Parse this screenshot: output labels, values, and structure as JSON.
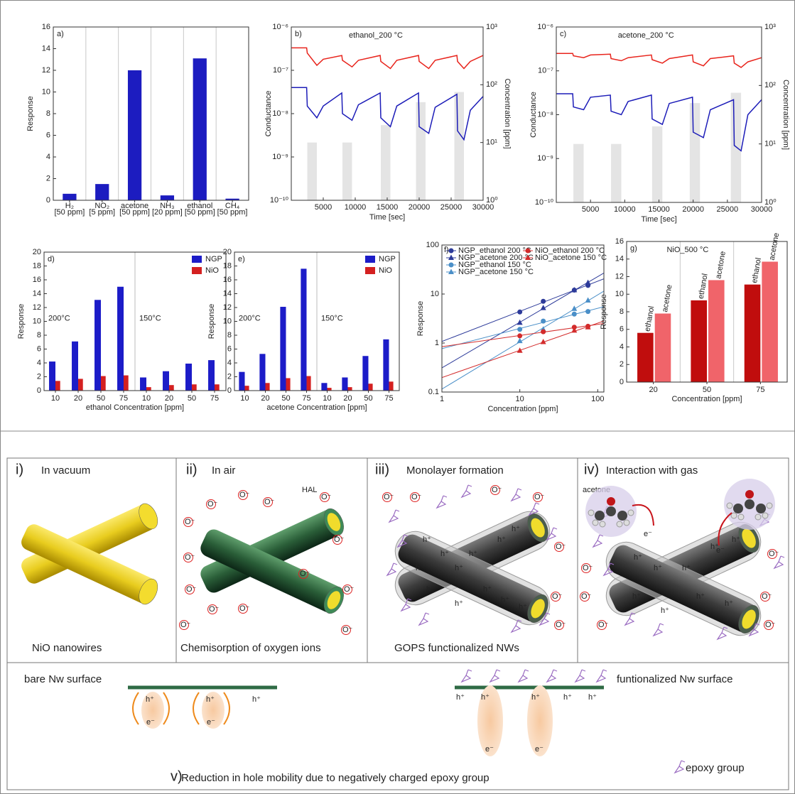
{
  "chart_data": [
    {
      "type": "bar",
      "panel_label": "a)",
      "ylabel": "Response",
      "categories": [
        "H₂",
        "NO₂",
        "acetone",
        "NH₃",
        "ethanol",
        "CH₄"
      ],
      "category_notes": [
        "[50 ppm]",
        "[5 ppm]",
        "[50 ppm]",
        "[20 ppm]",
        "[50 ppm]",
        "[50 ppm]"
      ],
      "values": [
        0.6,
        1.5,
        12.0,
        0.45,
        13.1,
        0.15
      ],
      "color": "#1c1cc0",
      "ylim": [
        0,
        16
      ],
      "yticks": [
        0,
        2,
        4,
        6,
        8,
        10,
        12,
        14,
        16
      ],
      "grid_x": true
    },
    {
      "type": "line",
      "panel_label": "b)",
      "title": "ethanol_200 °C",
      "xlabel": "Time [sec]",
      "ylabel": "Conductance",
      "y2label": "Concentration [ppm]",
      "x": [
        0,
        2400,
        2500,
        4000,
        5000,
        7900,
        8000,
        9500,
        10500,
        13900,
        14000,
        15500,
        16500,
        19900,
        20000,
        21500,
        22500,
        25900,
        26000,
        27000,
        28000,
        30000
      ],
      "series": [
        {
          "color": "#e8241c",
          "values": [
            3.3e-07,
            3.3e-07,
            2.5e-07,
            1.3e-07,
            1.8e-07,
            2.2e-07,
            1.7e-07,
            1.2e-07,
            1.7e-07,
            2.2e-07,
            1.6e-07,
            1.1e-07,
            1.7e-07,
            2.2e-07,
            1.6e-07,
            1.1e-07,
            1.7e-07,
            2.2e-07,
            1.6e-07,
            1.1e-07,
            1.6e-07,
            2.2e-07
          ]
        },
        {
          "color": "#1c1cb8",
          "values": [
            4e-08,
            4e-08,
            1.5e-08,
            8e-09,
            1.5e-08,
            3e-08,
            1e-08,
            7e-09,
            1.6e-08,
            3e-08,
            8e-09,
            5e-09,
            1.5e-08,
            3e-08,
            5e-09,
            3.5e-09,
            1.4e-08,
            2.8e-08,
            4e-09,
            2.5e-09,
            1.2e-08,
            2.5e-08
          ]
        }
      ],
      "bars": {
        "axis": "y2",
        "color": "#e4e4e4",
        "x_start": [
          2500,
          8000,
          14000,
          19500,
          25500
        ],
        "x_end": [
          4000,
          9500,
          15500,
          21000,
          27000
        ],
        "values": [
          10,
          10,
          20,
          50,
          75
        ]
      },
      "xlim": [
        0,
        30000
      ],
      "xticks": [
        5000,
        10000,
        15000,
        20000,
        25000,
        30000
      ],
      "ylog": true,
      "ylim": [
        1e-10,
        1e-06
      ],
      "yticks": [
        {
          "value": 1e-10,
          "label": "10⁻¹⁰"
        },
        {
          "value": 1e-09,
          "label": "10⁻⁹"
        },
        {
          "value": 1e-08,
          "label": "10⁻⁸"
        },
        {
          "value": 1e-07,
          "label": "10⁻⁷"
        },
        {
          "value": 1e-06,
          "label": "10⁻⁶"
        }
      ],
      "y2lim": [
        1,
        1000
      ],
      "y2ticks": [
        {
          "value": 1,
          "label": "10⁰"
        },
        {
          "value": 10,
          "label": "10¹"
        },
        {
          "value": 100,
          "label": "10²"
        },
        {
          "value": 1000,
          "label": "10³"
        }
      ]
    },
    {
      "type": "line",
      "panel_label": "c)",
      "title": "acetone_200 °C",
      "xlabel": "Time [sec]",
      "ylabel": "Conductance",
      "y2label": "Concentration [ppm]",
      "x": [
        0,
        2400,
        2500,
        4000,
        5000,
        7900,
        8000,
        9500,
        10500,
        13900,
        14000,
        15500,
        16500,
        19900,
        20000,
        21500,
        22500,
        25900,
        26000,
        27000,
        28000,
        30000
      ],
      "series": [
        {
          "color": "#e8241c",
          "values": [
            2.5e-07,
            2.5e-07,
            2.2e-07,
            2e-07,
            2.3e-07,
            2.4e-07,
            1.9e-07,
            1.7e-07,
            2e-07,
            2.3e-07,
            1.8e-07,
            1.5e-07,
            1.9e-07,
            2.3e-07,
            1.6e-07,
            1.3e-07,
            1.9e-07,
            2.2e-07,
            1.5e-07,
            1.2e-07,
            1.6e-07,
            2e-07
          ]
        },
        {
          "color": "#1c1cb8",
          "values": [
            3e-08,
            3e-08,
            1.5e-08,
            1.3e-08,
            2.5e-08,
            2.8e-08,
            1.2e-08,
            1e-08,
            2e-08,
            2.8e-08,
            8e-09,
            6e-09,
            1.8e-08,
            2.5e-08,
            4e-09,
            3e-09,
            1.3e-08,
            2.2e-08,
            2e-09,
            1.5e-09,
            1e-08,
            2.2e-08
          ]
        }
      ],
      "bars": {
        "axis": "y2",
        "color": "#e4e4e4",
        "x_start": [
          2500,
          8000,
          14000,
          19500,
          25500
        ],
        "x_end": [
          4000,
          9500,
          15500,
          21000,
          27000
        ],
        "values": [
          10,
          10,
          20,
          50,
          75
        ]
      },
      "xlim": [
        0,
        30000
      ],
      "xticks": [
        5000,
        10000,
        15000,
        20000,
        25000,
        30000
      ],
      "ylog": true,
      "ylim": [
        1e-10,
        1e-06
      ],
      "yticks": [
        {
          "value": 1e-10,
          "label": "10⁻¹⁰"
        },
        {
          "value": 1e-09,
          "label": "10⁻⁹"
        },
        {
          "value": 1e-08,
          "label": "10⁻⁸"
        },
        {
          "value": 1e-07,
          "label": "10⁻⁷"
        },
        {
          "value": 1e-06,
          "label": "10⁻⁶"
        }
      ],
      "y2lim": [
        1,
        1000
      ],
      "y2ticks": [
        {
          "value": 1,
          "label": "10⁰"
        },
        {
          "value": 10,
          "label": "10¹"
        },
        {
          "value": 100,
          "label": "10²"
        },
        {
          "value": 1000,
          "label": "10³"
        }
      ]
    },
    {
      "type": "bar",
      "panel_label": "d)",
      "xlabel": "ethanol Concentration [ppm]",
      "ylabel": "Response",
      "categories": [
        "10",
        "20",
        "50",
        "75",
        "10",
        "20",
        "50",
        "75"
      ],
      "temperatures": [
        "200°C",
        "150°C"
      ],
      "series": [
        {
          "name": "NGP",
          "color": "#1c1cc8",
          "values": [
            4.2,
            7.1,
            13.1,
            15.0,
            1.9,
            2.8,
            3.9,
            4.4
          ]
        },
        {
          "name": "NiO",
          "color": "#d42020",
          "values": [
            1.4,
            1.7,
            2.1,
            2.2,
            0.5,
            0.8,
            0.9,
            0.9
          ]
        }
      ],
      "ylim": [
        0,
        20
      ],
      "yticks": [
        0,
        2,
        4,
        6,
        8,
        10,
        12,
        14,
        16,
        18,
        20
      ],
      "legend": "upper right"
    },
    {
      "type": "bar",
      "panel_label": "e)",
      "xlabel": "acetone Concentration [ppm]",
      "ylabel": "Response",
      "categories": [
        "10",
        "20",
        "50",
        "75",
        "10",
        "20",
        "50",
        "75"
      ],
      "temperatures": [
        "200°C",
        "150°C"
      ],
      "series": [
        {
          "name": "NGP",
          "color": "#1c1cc8",
          "values": [
            2.7,
            5.3,
            12.1,
            17.6,
            1.1,
            1.9,
            5.0,
            7.4
          ]
        },
        {
          "name": "NiO",
          "color": "#d42020",
          "values": [
            0.7,
            1.1,
            1.8,
            2.1,
            0.4,
            0.5,
            1.0,
            1.3
          ]
        }
      ],
      "ylim": [
        0,
        20
      ],
      "yticks": [
        0,
        2,
        4,
        6,
        8,
        10,
        12,
        14,
        16,
        18,
        20
      ],
      "legend": "upper right"
    },
    {
      "type": "scatter",
      "panel_label": "f)",
      "xlabel": "Concentration [ppm]",
      "ylabel": "Response",
      "xlog": true,
      "ylog": true,
      "x": [
        10,
        20,
        50,
        75
      ],
      "series": [
        {
          "name": "NGP_ethanol 200 °C",
          "marker": "circle",
          "color": "#2d3b9a",
          "values": [
            4.3,
            7.1,
            12,
            15
          ]
        },
        {
          "name": "NGP_acetone 200 °C",
          "marker": "triangle",
          "color": "#2d3b9a",
          "values": [
            2.6,
            5.2,
            12,
            17
          ]
        },
        {
          "name": "NGP_ethanol 150 °C",
          "marker": "circle",
          "color": "#4a8fc8",
          "values": [
            1.9,
            2.8,
            3.9,
            4.4
          ]
        },
        {
          "name": "NGP_acetone 150 °C",
          "marker": "triangle",
          "color": "#4a8fc8",
          "values": [
            1.1,
            1.9,
            5.0,
            7.4
          ]
        },
        {
          "name": "NiO_ethanol 200 °C",
          "marker": "circle",
          "color": "#d32b2b",
          "values": [
            1.4,
            1.7,
            2.1,
            2.2
          ]
        },
        {
          "name": "NiO_acetone 150 °C",
          "marker": "triangle",
          "color": "#d32b2b",
          "values": [
            0.7,
            1.05,
            1.8,
            2.1
          ]
        }
      ],
      "xlim": [
        1,
        120
      ],
      "xticks": [
        1,
        10,
        100
      ],
      "ylim": [
        0.1,
        100
      ],
      "yticks": [
        0.1,
        1,
        10,
        100
      ],
      "legend": "upper left"
    },
    {
      "type": "bar",
      "panel_label": "g)",
      "annotation": "NiO_500 °C",
      "xlabel": "Concentration [ppm]",
      "ylabel": "Response",
      "categories": [
        "20",
        "50",
        "75"
      ],
      "series": [
        {
          "name": "ethanol",
          "color": "#c00d0d",
          "values": [
            5.6,
            9.3,
            11.1
          ]
        },
        {
          "name": "acetone",
          "color": "#f0646a",
          "values": [
            7.8,
            11.6,
            13.7
          ]
        }
      ],
      "ylim": [
        0,
        16
      ],
      "yticks": [
        0,
        2,
        4,
        6,
        8,
        10,
        12,
        14,
        16
      ],
      "grid_x": true,
      "bar_labels": true
    }
  ],
  "diagram": {
    "panels": [
      {
        "number": "i)",
        "title": "In vacuum",
        "caption": "NiO nanowires"
      },
      {
        "number": "ii)",
        "title": "In air",
        "caption": "Chemisorption of oxygen ions"
      },
      {
        "number": "iii)",
        "title": "Monolayer formation",
        "caption": "GOPS functionalized NWs"
      },
      {
        "number": "iv)",
        "title": "Interaction with gas"
      }
    ],
    "hal_label": "HAL",
    "oxygen_ion": "O⁻",
    "hole": "h⁺",
    "electron": "e⁻",
    "gas_label": "acetone",
    "bottom": {
      "left_label": "bare Nw surface",
      "right_label": "funtionalized Nw surface",
      "number": "v)",
      "caption": "Reduction in hole mobility due to negatively charged epoxy group",
      "legend_label": "epoxy group"
    }
  }
}
